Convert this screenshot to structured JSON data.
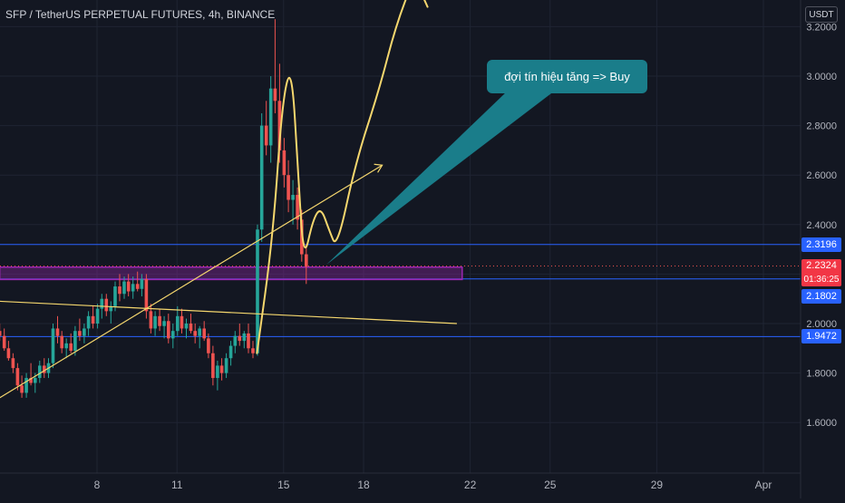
{
  "header": {
    "title": "SFP / TetherUS PERPETUAL FUTURES, 4h, BINANCE",
    "currency_label": "USDT"
  },
  "annotation": {
    "callout_text": "đợi tín hiệu tăng => Buy"
  },
  "colors": {
    "background": "#131722",
    "grid": "#1f2433",
    "axis_text": "#b2b5be",
    "up_candle": "#26a69a",
    "down_candle": "#ef5350",
    "horizontal_line": "#2962ff",
    "badge_blue": "#2962ff",
    "badge_red": "#f23645",
    "trendline": "#f5d76e",
    "zone_border": "#9c27b0",
    "callout": "#1a7d8a"
  },
  "price_badges": {
    "level_high": "2.3196",
    "current_price": "2.2324",
    "countdown": "01:36:25",
    "level_mid": "2.1802",
    "level_low": "1.9472"
  },
  "chart_data": {
    "type": "candlestick",
    "title": "SFP / TetherUS PERPETUAL FUTURES, 4h, BINANCE",
    "timeframe": "4h",
    "y_axis": {
      "ticks": [
        "3.2000",
        "3.0000",
        "2.8000",
        "2.6000",
        "2.4000",
        "2.2000",
        "2.0000",
        "1.8000",
        "1.6000"
      ],
      "tick_values": [
        3.2,
        3.0,
        2.8,
        2.6,
        2.4,
        2.2,
        2.0,
        1.8,
        1.6
      ],
      "range": [
        1.46,
        3.3
      ]
    },
    "x_axis": {
      "ticks": [
        "8",
        "11",
        "15",
        "18",
        "22",
        "25",
        "29",
        "Apr"
      ],
      "tick_values": [
        8,
        11,
        15,
        18,
        22,
        25,
        29,
        33
      ],
      "range": [
        4.35,
        35.2
      ]
    },
    "grid": true,
    "current_price": 2.2324,
    "horizontal_levels": [
      2.3196,
      2.1802,
      1.9472
    ],
    "support_zone": {
      "from_day": 4.35,
      "to_day": 21.7,
      "low": 2.178,
      "high": 2.228
    },
    "candles": [
      [
        4.35,
        1.97,
        2.0,
        1.93,
        1.95
      ],
      [
        4.52,
        1.95,
        1.98,
        1.89,
        1.9
      ],
      [
        4.68,
        1.9,
        1.93,
        1.85,
        1.86
      ],
      [
        4.85,
        1.86,
        1.88,
        1.8,
        1.82
      ],
      [
        5.02,
        1.82,
        1.84,
        1.73,
        1.75
      ],
      [
        5.18,
        1.75,
        1.79,
        1.7,
        1.72
      ],
      [
        5.35,
        1.72,
        1.8,
        1.7,
        1.78
      ],
      [
        5.52,
        1.78,
        1.84,
        1.75,
        1.76
      ],
      [
        5.68,
        1.76,
        1.8,
        1.72,
        1.78
      ],
      [
        5.85,
        1.78,
        1.85,
        1.76,
        1.83
      ],
      [
        6.02,
        1.83,
        1.86,
        1.78,
        1.8
      ],
      [
        6.18,
        1.8,
        1.86,
        1.78,
        1.84
      ],
      [
        6.35,
        1.84,
        2.0,
        1.82,
        1.98
      ],
      [
        6.52,
        1.98,
        2.03,
        1.92,
        1.95
      ],
      [
        6.68,
        1.95,
        1.97,
        1.88,
        1.9
      ],
      [
        6.85,
        1.9,
        1.94,
        1.86,
        1.92
      ],
      [
        7.02,
        1.92,
        1.96,
        1.88,
        1.89
      ],
      [
        7.18,
        1.89,
        1.99,
        1.87,
        1.97
      ],
      [
        7.35,
        1.97,
        2.02,
        1.93,
        1.95
      ],
      [
        7.52,
        1.95,
        2.0,
        1.92,
        1.98
      ],
      [
        7.68,
        1.98,
        2.05,
        1.95,
        2.03
      ],
      [
        7.85,
        2.03,
        2.07,
        1.98,
        2.0
      ],
      [
        8.02,
        2.0,
        2.08,
        1.98,
        2.06
      ],
      [
        8.18,
        2.06,
        2.12,
        2.02,
        2.1
      ],
      [
        8.35,
        2.1,
        2.12,
        2.03,
        2.05
      ],
      [
        8.52,
        2.05,
        2.09,
        2.0,
        2.07
      ],
      [
        8.68,
        2.07,
        2.17,
        2.05,
        2.15
      ],
      [
        8.85,
        2.15,
        2.2,
        2.09,
        2.12
      ],
      [
        9.02,
        2.12,
        2.19,
        2.1,
        2.17
      ],
      [
        9.18,
        2.17,
        2.2,
        2.11,
        2.13
      ],
      [
        9.35,
        2.13,
        2.19,
        2.1,
        2.16
      ],
      [
        9.52,
        2.16,
        2.21,
        2.13,
        2.14
      ],
      [
        9.68,
        2.14,
        2.2,
        2.11,
        2.18
      ],
      [
        9.85,
        2.18,
        2.2,
        2.02,
        2.05
      ],
      [
        10.02,
        2.05,
        2.08,
        1.96,
        1.98
      ],
      [
        10.18,
        1.98,
        2.05,
        1.95,
        2.03
      ],
      [
        10.35,
        2.03,
        2.06,
        1.97,
        1.99
      ],
      [
        10.52,
        1.99,
        2.03,
        1.94,
        2.01
      ],
      [
        10.68,
        2.01,
        2.04,
        1.92,
        1.94
      ],
      [
        10.85,
        1.94,
        2.0,
        1.9,
        1.97
      ],
      [
        11.02,
        1.97,
        2.07,
        1.95,
        2.03
      ],
      [
        11.18,
        2.03,
        2.06,
        1.96,
        1.98
      ],
      [
        11.35,
        1.98,
        2.02,
        1.94,
        2.0
      ],
      [
        11.52,
        2.0,
        2.04,
        1.96,
        1.97
      ],
      [
        11.68,
        1.97,
        2.0,
        1.92,
        1.95
      ],
      [
        11.85,
        1.95,
        1.99,
        1.9,
        1.98
      ],
      [
        12.02,
        1.98,
        2.01,
        1.93,
        1.94
      ],
      [
        12.18,
        1.94,
        1.96,
        1.86,
        1.88
      ],
      [
        12.35,
        1.88,
        1.91,
        1.75,
        1.78
      ],
      [
        12.52,
        1.78,
        1.85,
        1.73,
        1.83
      ],
      [
        12.68,
        1.83,
        1.86,
        1.77,
        1.8
      ],
      [
        12.85,
        1.8,
        1.88,
        1.78,
        1.86
      ],
      [
        13.02,
        1.86,
        1.93,
        1.83,
        1.91
      ],
      [
        13.18,
        1.91,
        1.97,
        1.88,
        1.95
      ],
      [
        13.35,
        1.95,
        2.0,
        1.91,
        1.93
      ],
      [
        13.52,
        1.93,
        1.97,
        1.9,
        1.96
      ],
      [
        13.68,
        1.96,
        2.0,
        1.88,
        1.9
      ],
      [
        13.85,
        1.9,
        1.93,
        1.86,
        1.88
      ],
      [
        14.02,
        1.88,
        2.4,
        1.87,
        2.38
      ],
      [
        14.18,
        2.38,
        2.85,
        2.33,
        2.8
      ],
      [
        14.35,
        2.8,
        2.9,
        2.68,
        2.72
      ],
      [
        14.52,
        2.72,
        3.0,
        2.65,
        2.95
      ],
      [
        14.68,
        2.95,
        3.23,
        2.85,
        2.9
      ],
      [
        14.85,
        2.9,
        3.05,
        2.65,
        2.7
      ],
      [
        15.02,
        2.7,
        2.75,
        2.55,
        2.6
      ],
      [
        15.18,
        2.6,
        2.66,
        2.45,
        2.5
      ],
      [
        15.35,
        2.5,
        2.58,
        2.4,
        2.52
      ],
      [
        15.52,
        2.52,
        2.55,
        2.38,
        2.42
      ],
      [
        15.68,
        2.42,
        2.46,
        2.25,
        2.28
      ],
      [
        15.85,
        2.28,
        2.32,
        2.16,
        2.23
      ]
    ],
    "drawings": [
      {
        "kind": "line",
        "from": [
          4.35,
          2.09
        ],
        "to": [
          21.5,
          2.0
        ]
      },
      {
        "kind": "line",
        "from": [
          4.35,
          1.7
        ],
        "to": [
          18.7,
          2.64
        ]
      },
      {
        "kind": "wave",
        "points": [
          [
            14.0,
            1.88
          ],
          [
            14.6,
            2.35
          ],
          [
            14.95,
            2.9
          ],
          [
            15.3,
            3.05
          ],
          [
            15.55,
            2.6
          ],
          [
            15.75,
            2.25
          ],
          [
            16.1,
            2.42
          ],
          [
            16.4,
            2.47
          ],
          [
            16.7,
            2.38
          ],
          [
            17.0,
            2.3
          ],
          [
            17.7,
            2.65
          ],
          [
            18.6,
            2.95
          ],
          [
            19.2,
            3.2
          ],
          [
            19.9,
            3.4
          ]
        ]
      },
      {
        "kind": "wave",
        "points": [
          [
            19.9,
            3.4
          ],
          [
            20.4,
            3.28
          ]
        ]
      }
    ]
  }
}
